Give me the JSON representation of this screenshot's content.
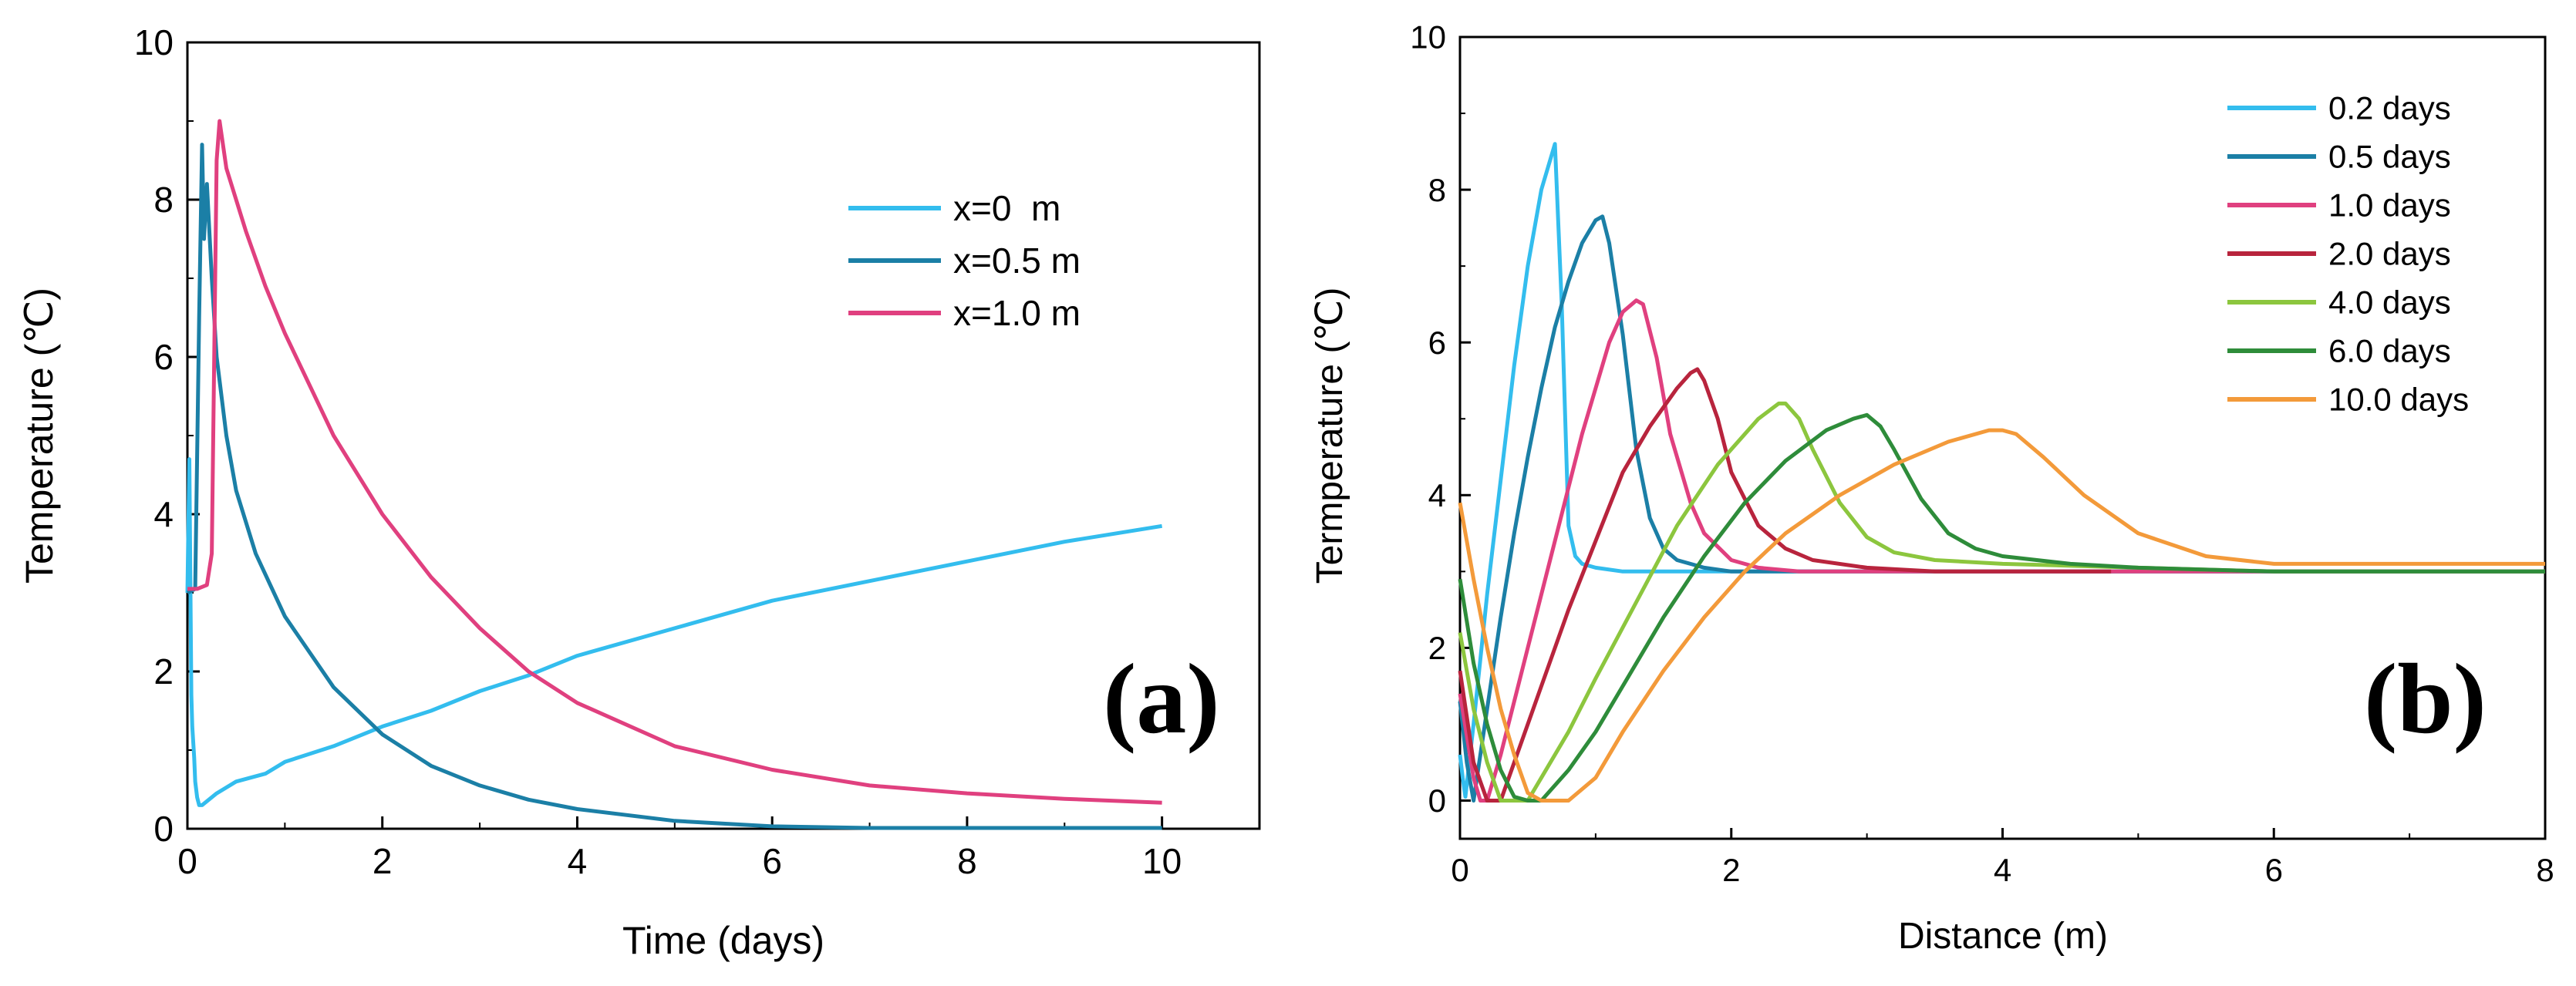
{
  "chart_data": [
    {
      "type": "line",
      "panel_label": "(a)",
      "xlabel": "Time (days)",
      "ylabel": "Temperature (℃)",
      "xlim": [
        0,
        11
      ],
      "ylim": [
        0,
        10
      ],
      "xticks": [
        "0",
        "2",
        "4",
        "6",
        "8",
        "10"
      ],
      "yticks": [
        "0",
        "2",
        "4",
        "6",
        "8",
        "10"
      ],
      "grid": false,
      "legend_position": "top-right",
      "series": [
        {
          "name": "x=0  m",
          "color": "#33bdee",
          "x": [
            0,
            0.02,
            0.04,
            0.05,
            0.07,
            0.08,
            0.1,
            0.12,
            0.15,
            0.3,
            0.5,
            0.8,
            1.0,
            1.5,
            2.0,
            2.5,
            3.0,
            3.5,
            4.0,
            5.0,
            6.0,
            7.0,
            8.0,
            9.0,
            10.0
          ],
          "y": [
            3.0,
            4.7,
            1.7,
            1.3,
            0.9,
            0.6,
            0.4,
            0.3,
            0.3,
            0.45,
            0.6,
            0.7,
            0.85,
            1.05,
            1.3,
            1.5,
            1.75,
            1.95,
            2.2,
            2.55,
            2.9,
            3.15,
            3.4,
            3.65,
            3.85
          ]
        },
        {
          "name": "x=0.5 m",
          "color": "#1b7fa6",
          "x": [
            0,
            0.08,
            0.12,
            0.15,
            0.17,
            0.2,
            0.25,
            0.3,
            0.4,
            0.5,
            0.7,
            1.0,
            1.5,
            2.0,
            2.5,
            3.0,
            3.5,
            4.0,
            5.0,
            6.0,
            7.0,
            8.0,
            9.0,
            10.0
          ],
          "y": [
            3.0,
            3.05,
            6.5,
            8.7,
            7.5,
            8.2,
            7.0,
            6.0,
            5.0,
            4.3,
            3.5,
            2.7,
            1.8,
            1.2,
            0.8,
            0.55,
            0.37,
            0.25,
            0.1,
            0.03,
            0.01,
            0.01,
            0.01,
            0.01
          ]
        },
        {
          "name": "x=1.0 m",
          "color": "#e0407f",
          "x": [
            0,
            0.1,
            0.2,
            0.25,
            0.3,
            0.33,
            0.4,
            0.6,
            0.8,
            1.0,
            1.5,
            2.0,
            2.5,
            3.0,
            3.5,
            4.0,
            5.0,
            6.0,
            7.0,
            8.0,
            9.0,
            10.0
          ],
          "y": [
            3.05,
            3.05,
            3.1,
            3.5,
            8.5,
            9.0,
            8.4,
            7.6,
            6.9,
            6.3,
            5.0,
            4.0,
            3.2,
            2.55,
            2.0,
            1.6,
            1.05,
            0.75,
            0.55,
            0.45,
            0.38,
            0.33
          ]
        }
      ]
    },
    {
      "type": "line",
      "panel_label": "(b)",
      "xlabel": "Distance (m)",
      "ylabel": "Termperature (℃)",
      "xlim": [
        0,
        8
      ],
      "ylim": [
        -0.5,
        10
      ],
      "xticks": [
        "0",
        "2",
        "4",
        "6",
        "8"
      ],
      "yticks": [
        "0",
        "2",
        "4",
        "6",
        "8",
        "10"
      ],
      "grid": false,
      "legend_position": "top-right",
      "series": [
        {
          "name": "0.2 days",
          "color": "#33bdee",
          "x": [
            0,
            0.02,
            0.04,
            0.1,
            0.2,
            0.3,
            0.4,
            0.5,
            0.6,
            0.65,
            0.7,
            0.75,
            0.8,
            0.85,
            0.9,
            1.0,
            1.2,
            1.5,
            2.0,
            3.0,
            4.0,
            5.0,
            6.0,
            8.0
          ],
          "y": [
            0.6,
            0.3,
            0.05,
            1.0,
            2.7,
            4.2,
            5.7,
            7.0,
            8.0,
            8.3,
            8.6,
            6.5,
            3.6,
            3.2,
            3.1,
            3.05,
            3.0,
            3.0,
            3.0,
            3.0,
            3.0,
            3.0,
            3.0,
            3.0
          ]
        },
        {
          "name": "0.5 days",
          "color": "#1b7fa6",
          "x": [
            0,
            0.05,
            0.1,
            0.2,
            0.3,
            0.4,
            0.5,
            0.6,
            0.7,
            0.8,
            0.9,
            1.0,
            1.05,
            1.1,
            1.2,
            1.3,
            1.4,
            1.5,
            1.6,
            1.8,
            2.0,
            2.5,
            3.0,
            4.0,
            5.0,
            6.0,
            8.0
          ],
          "y": [
            1.3,
            0.5,
            0.0,
            1.2,
            2.4,
            3.5,
            4.5,
            5.4,
            6.2,
            6.8,
            7.3,
            7.6,
            7.65,
            7.3,
            6.1,
            4.6,
            3.7,
            3.3,
            3.15,
            3.05,
            3.0,
            3.0,
            3.0,
            3.0,
            3.0,
            3.0,
            3.0
          ]
        },
        {
          "name": "1.0 days",
          "color": "#e0407f",
          "x": [
            0,
            0.1,
            0.15,
            0.2,
            0.3,
            0.5,
            0.7,
            0.9,
            1.1,
            1.2,
            1.3,
            1.35,
            1.45,
            1.55,
            1.7,
            1.8,
            2.0,
            2.2,
            2.5,
            3.0,
            4.0,
            6.0,
            8.0
          ],
          "y": [
            1.4,
            0.3,
            0.0,
            0.0,
            0.6,
            2.0,
            3.4,
            4.8,
            6.0,
            6.4,
            6.55,
            6.5,
            5.8,
            4.8,
            3.9,
            3.5,
            3.15,
            3.05,
            3.0,
            3.0,
            3.0,
            3.0,
            3.0
          ]
        },
        {
          "name": "2.0 days",
          "color": "#b8243d",
          "x": [
            0,
            0.1,
            0.2,
            0.3,
            0.4,
            0.6,
            0.8,
            1.0,
            1.2,
            1.4,
            1.6,
            1.7,
            1.75,
            1.8,
            1.9,
            2.0,
            2.2,
            2.4,
            2.6,
            3.0,
            3.5,
            4.0,
            4.8
          ],
          "y": [
            1.7,
            0.5,
            0.0,
            0.0,
            0.5,
            1.5,
            2.5,
            3.4,
            4.3,
            4.9,
            5.4,
            5.6,
            5.65,
            5.5,
            5.0,
            4.3,
            3.6,
            3.3,
            3.15,
            3.05,
            3.0,
            3.0,
            3.0
          ]
        },
        {
          "name": "4.0 days",
          "color": "#8cc63e",
          "x": [
            0,
            0.1,
            0.2,
            0.3,
            0.4,
            0.5,
            0.6,
            0.8,
            1.0,
            1.3,
            1.6,
            1.9,
            2.2,
            2.35,
            2.4,
            2.5,
            2.6,
            2.8,
            3.0,
            3.2,
            3.5,
            4.0,
            5.0,
            6.0,
            8.0
          ],
          "y": [
            2.2,
            1.2,
            0.5,
            0.0,
            0.0,
            0.0,
            0.3,
            0.9,
            1.6,
            2.6,
            3.6,
            4.4,
            5.0,
            5.2,
            5.2,
            5.0,
            4.6,
            3.9,
            3.45,
            3.25,
            3.15,
            3.1,
            3.05,
            3.0,
            3.0
          ]
        },
        {
          "name": "6.0 days",
          "color": "#2e8c3a",
          "x": [
            0,
            0.1,
            0.2,
            0.3,
            0.4,
            0.5,
            0.6,
            0.8,
            1.0,
            1.2,
            1.5,
            1.8,
            2.1,
            2.4,
            2.7,
            2.9,
            3.0,
            3.1,
            3.2,
            3.4,
            3.6,
            3.8,
            4.0,
            4.5,
            5.0,
            6.0,
            8.0
          ],
          "y": [
            2.9,
            1.8,
            1.0,
            0.4,
            0.05,
            0.0,
            0.0,
            0.4,
            0.9,
            1.5,
            2.4,
            3.2,
            3.9,
            4.45,
            4.85,
            5.0,
            5.05,
            4.9,
            4.6,
            3.95,
            3.5,
            3.3,
            3.2,
            3.1,
            3.05,
            3.0,
            3.0
          ]
        },
        {
          "name": "10.0 days",
          "color": "#f39a3a",
          "x": [
            0,
            0.1,
            0.2,
            0.3,
            0.4,
            0.5,
            0.6,
            0.7,
            0.8,
            1.0,
            1.2,
            1.5,
            1.8,
            2.1,
            2.4,
            2.8,
            3.2,
            3.6,
            3.9,
            4.0,
            4.1,
            4.3,
            4.6,
            5.0,
            5.5,
            6.0,
            6.5,
            7.0,
            8.0
          ],
          "y": [
            3.9,
            2.9,
            2.0,
            1.2,
            0.6,
            0.1,
            0.0,
            0.0,
            0.0,
            0.3,
            0.9,
            1.7,
            2.4,
            3.0,
            3.5,
            4.0,
            4.4,
            4.7,
            4.85,
            4.85,
            4.8,
            4.5,
            4.0,
            3.5,
            3.2,
            3.1,
            3.1,
            3.1,
            3.1
          ]
        }
      ]
    }
  ]
}
